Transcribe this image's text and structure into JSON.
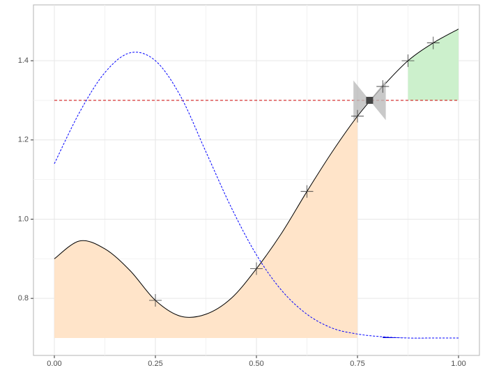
{
  "chart_data": {
    "type": "line",
    "xlim": [
      -0.0517,
      1.0517
    ],
    "ylim": [
      0.656,
      1.541
    ],
    "xticks": [
      {
        "value": 0,
        "label": "0.00"
      },
      {
        "value": 0.25,
        "label": "0.25"
      },
      {
        "value": 0.5,
        "label": "0.50"
      },
      {
        "value": 0.75,
        "label": "0.75"
      },
      {
        "value": 1,
        "label": "1.00"
      }
    ],
    "yticks": [
      0.8,
      {
        "value": 1,
        "label": "1.0"
      },
      1.2,
      1.4
    ],
    "grid": true,
    "series": [
      {
        "color": "#000000",
        "dash": false,
        "x": [
          0,
          0.0625,
          0.125,
          0.1875,
          0.25,
          0.3125,
          0.375,
          0.4375,
          0.5,
          0.5625,
          0.625,
          0.6875,
          0.75,
          0.8125,
          0.875,
          0.9375,
          1.0
        ],
        "values": [
          0.9,
          0.945,
          0.925,
          0.87,
          0.795,
          0.755,
          0.76,
          0.8,
          0.875,
          0.965,
          1.07,
          1.17,
          1.26,
          1.335,
          1.4,
          1.445,
          1.48
        ]
      },
      {
        "color": "#0000ff",
        "dash": true,
        "x": [
          0,
          0.0625,
          0.125,
          0.1875,
          0.25,
          0.3125,
          0.375,
          0.4375,
          0.5,
          0.5625,
          0.625,
          0.6875,
          0.75,
          0.8125,
          0.875,
          0.9375,
          1.0
        ],
        "values": [
          1.14,
          1.27,
          1.37,
          1.42,
          1.4,
          1.31,
          1.17,
          1.03,
          0.91,
          0.82,
          0.76,
          0.725,
          0.71,
          0.703,
          0.7,
          0.7,
          0.7
        ]
      }
    ],
    "areas": [
      {
        "series": 0,
        "from": 0,
        "to": 0.75,
        "base": 0.7,
        "color": "#ffe4c9"
      },
      {
        "series": 0,
        "from": 0.875,
        "to": 1.0,
        "base": 1.3,
        "color": "#ccf0cc"
      },
      {
        "series": 1,
        "from": 0.8125,
        "to": 0.9375,
        "base": 0.7,
        "color": "#0000cc"
      }
    ],
    "hline": {
      "value": 1.3,
      "color": "#cc0000"
    },
    "points": {
      "x": [
        0.25,
        0.5,
        0.625,
        0.75,
        0.8125,
        0.875,
        0.9375
      ],
      "values": [
        0.795,
        0.875,
        1.07,
        1.26,
        1.335,
        1.4,
        1.445
      ],
      "color": "#333333"
    },
    "bowtie": {
      "x": 0.78,
      "y": 1.3,
      "half_width": 0.04,
      "half_height": 0.05,
      "color": "#bbbbbb",
      "center_color": "#444444"
    }
  }
}
